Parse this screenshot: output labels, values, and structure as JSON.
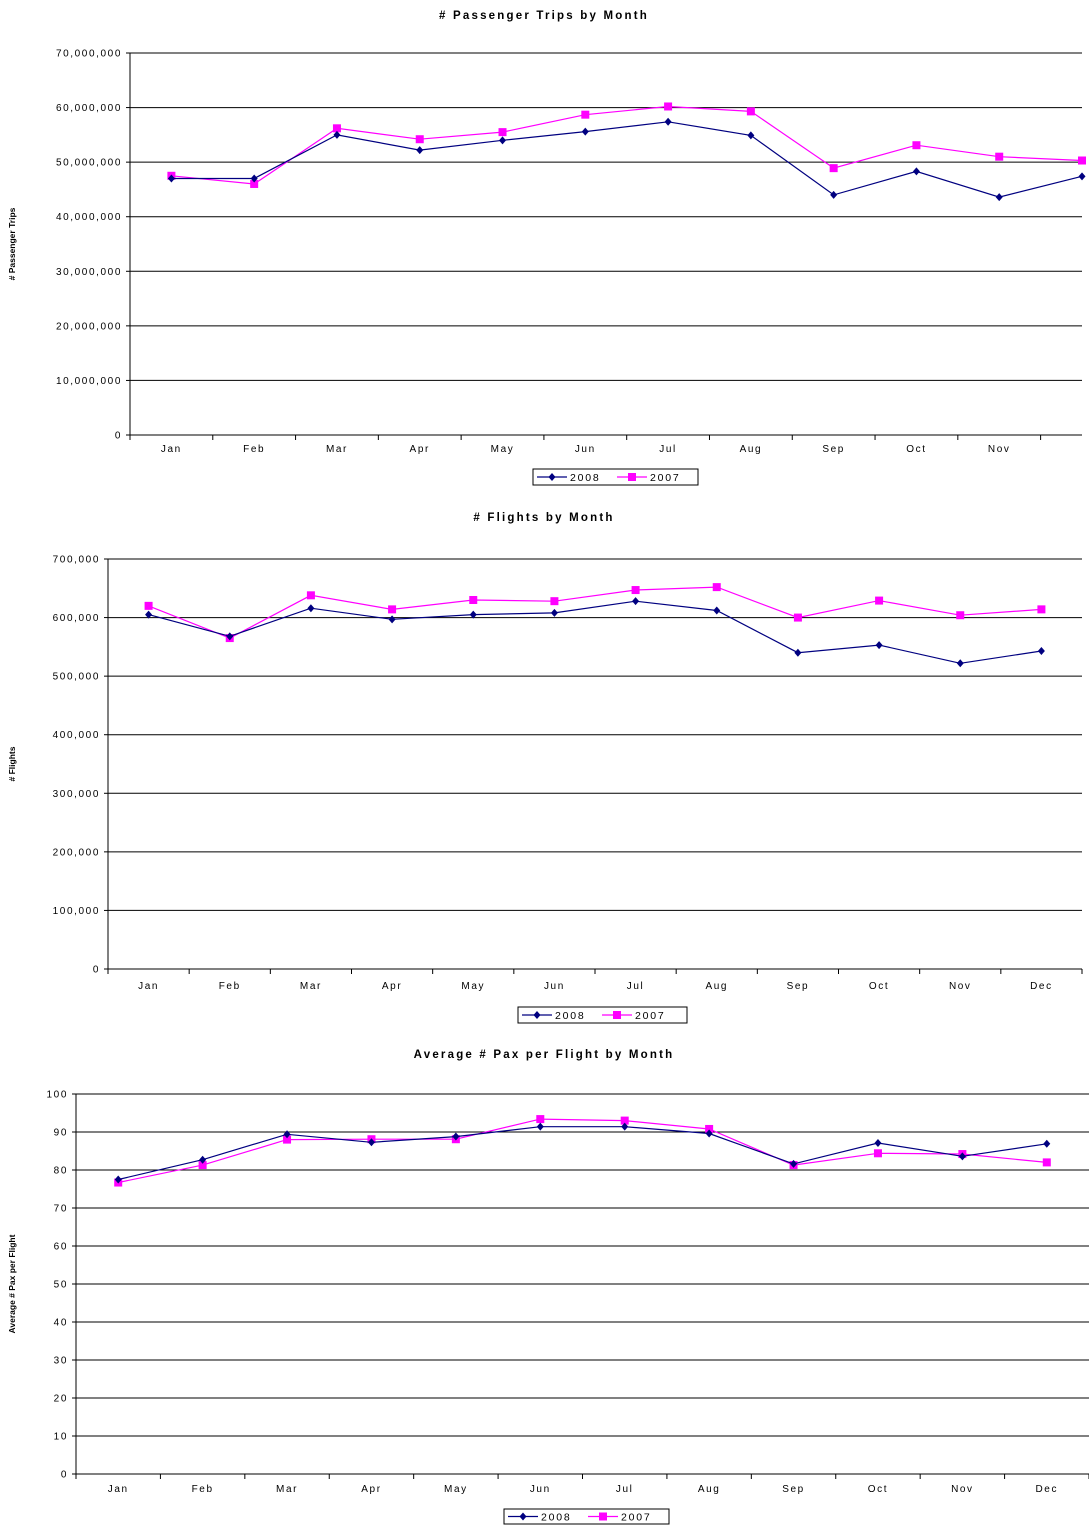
{
  "colors": {
    "series_2008": "#000080",
    "series_2007": "#ff00ff",
    "grid": "#000000",
    "background": "#ffffff"
  },
  "chart_data": [
    {
      "type": "line",
      "title": "# Passenger Trips by Month",
      "ylabel": "# Passenger Trips",
      "xlabel": "",
      "categories": [
        "Jan",
        "Feb",
        "Mar",
        "Apr",
        "May",
        "Jun",
        "Jul",
        "Aug",
        "Sep",
        "Oct",
        "Nov",
        ""
      ],
      "ylim": [
        0,
        70000000
      ],
      "yticks": [
        0,
        10000000,
        20000000,
        30000000,
        40000000,
        50000000,
        60000000,
        70000000
      ],
      "ytick_labels": [
        "0",
        "10,000,000",
        "20,000,000",
        "30,000,000",
        "40,000,000",
        "50,000,000",
        "60,000,000",
        "70,000,000"
      ],
      "grid": true,
      "legend": "bottom",
      "series": [
        {
          "name": "2008",
          "marker": "diamond",
          "values": [
            47000000,
            47000000,
            55000000,
            52200000,
            54000000,
            55600000,
            57400000,
            54900000,
            44000000,
            48300000,
            43600000,
            47400000
          ]
        },
        {
          "name": "2007",
          "marker": "square",
          "values": [
            47500000,
            46000000,
            56200000,
            54200000,
            55500000,
            58700000,
            60200000,
            59300000,
            48900000,
            53100000,
            51000000,
            50300000
          ]
        }
      ]
    },
    {
      "type": "line",
      "title": "# Flights by Month",
      "ylabel": "# Flights",
      "xlabel": "",
      "categories": [
        "Jan",
        "Feb",
        "Mar",
        "Apr",
        "May",
        "Jun",
        "Jul",
        "Aug",
        "Sep",
        "Oct",
        "Nov",
        "Dec"
      ],
      "ylim": [
        0,
        700000
      ],
      "yticks": [
        0,
        100000,
        200000,
        300000,
        400000,
        500000,
        600000,
        700000
      ],
      "ytick_labels": [
        "0",
        "100,000",
        "200,000",
        "300,000",
        "400,000",
        "500,000",
        "600,000",
        "700,000"
      ],
      "grid": true,
      "legend": "bottom",
      "series": [
        {
          "name": "2008",
          "marker": "diamond",
          "values": [
            605000,
            568000,
            616000,
            597000,
            605000,
            608000,
            628000,
            612000,
            540000,
            553000,
            522000,
            543000
          ]
        },
        {
          "name": "2007",
          "marker": "square",
          "values": [
            620000,
            565000,
            638000,
            614000,
            630000,
            628000,
            647000,
            652000,
            600000,
            629000,
            604000,
            614000
          ]
        }
      ]
    },
    {
      "type": "line",
      "title": "Average # Pax per Flight by Month",
      "ylabel": "Average # Pax per Flight",
      "xlabel": "",
      "categories": [
        "Jan",
        "Feb",
        "Mar",
        "Apr",
        "May",
        "Jun",
        "Jul",
        "Aug",
        "Sep",
        "Oct",
        "Nov",
        "Dec"
      ],
      "ylim": [
        0,
        100
      ],
      "yticks": [
        0,
        10,
        20,
        30,
        40,
        50,
        60,
        70,
        80,
        90,
        100
      ],
      "ytick_labels": [
        "0",
        "10",
        "20",
        "30",
        "40",
        "50",
        "60",
        "70",
        "80",
        "90",
        "100"
      ],
      "grid": true,
      "legend": "bottom",
      "series": [
        {
          "name": "2008",
          "marker": "diamond",
          "values": [
            77.5,
            82.7,
            89.4,
            87.3,
            88.8,
            91.4,
            91.4,
            89.6,
            81.6,
            87.1,
            83.6,
            86.9
          ]
        },
        {
          "name": "2007",
          "marker": "square",
          "values": [
            76.7,
            81.3,
            88.0,
            88.1,
            88.1,
            93.4,
            93.0,
            90.8,
            81.3,
            84.4,
            84.2,
            82.0
          ]
        }
      ]
    }
  ]
}
